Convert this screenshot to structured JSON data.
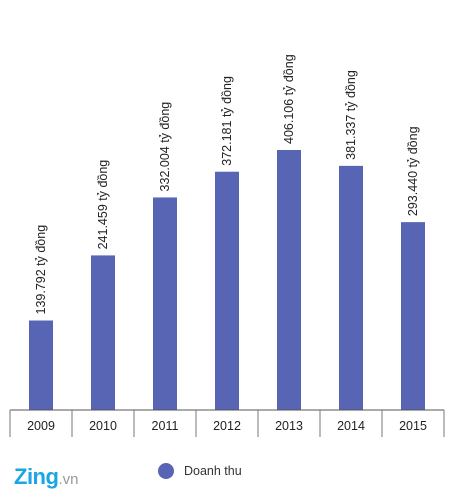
{
  "chart_data": {
    "type": "bar",
    "categories": [
      "2009",
      "2010",
      "2011",
      "2012",
      "2013",
      "2014",
      "2015"
    ],
    "series": [
      {
        "name": "Doanh thu",
        "values": [
          139.792,
          241.459,
          332.004,
          372.181,
          406.106,
          381.337,
          293.44
        ],
        "labels": [
          "139.792 tỷ đồng",
          "241.459 tỷ đồng",
          "332.004 tỷ đồng",
          "372.181 tỷ đồng",
          "406.106 tỷ đồng",
          "381.337 tỷ đồng",
          "293.440 tỷ đồng"
        ],
        "color": "#5865b5"
      }
    ],
    "ylim": [
      0,
      406.106
    ],
    "legend_position": "bottom"
  },
  "legend": {
    "label": "Doanh thu"
  },
  "logo": {
    "text": "Zing",
    "suffix": ".vn"
  }
}
